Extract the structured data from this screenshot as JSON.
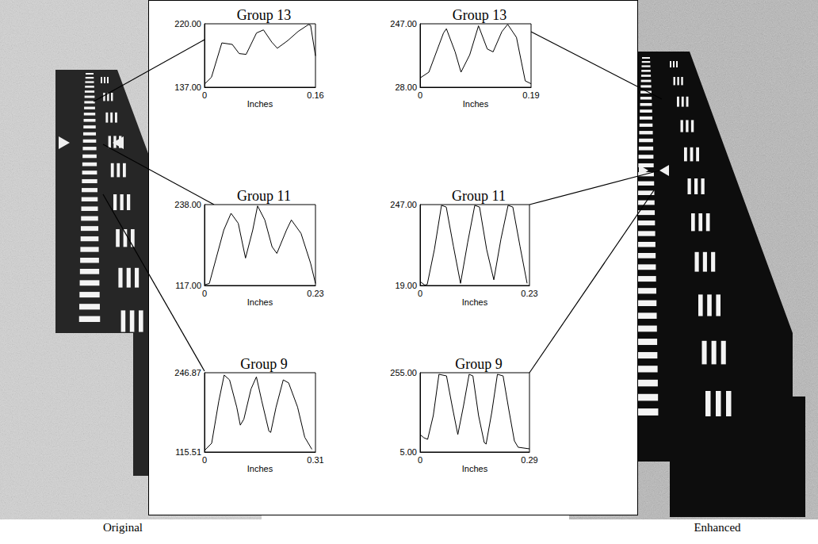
{
  "panels": {
    "left": "Original",
    "right": "Enhanced"
  },
  "chart_data": [
    {
      "type": "line",
      "title": "Group 13",
      "xlabel": "Inches",
      "color": "#000000",
      "grid": false,
      "x": [
        0,
        0.01,
        0.025,
        0.04,
        0.05,
        0.06,
        0.075,
        0.085,
        0.097,
        0.105,
        0.12,
        0.135,
        0.15,
        0.153,
        0.16
      ],
      "values": [
        141,
        150,
        195,
        193,
        181,
        180,
        208,
        212,
        196,
        188,
        198,
        210,
        219,
        218,
        178
      ],
      "xlim": [
        0,
        0.16
      ],
      "xticks": [
        0,
        0.16
      ],
      "ylim": [
        137,
        220
      ],
      "yticks": [
        {
          "value": 137,
          "label": "137.00"
        },
        {
          "value": 220,
          "label": "220.00"
        }
      ]
    },
    {
      "type": "line",
      "title": "Group 13",
      "xlabel": "Inches",
      "color": "#000000",
      "grid": false,
      "x": [
        0,
        0.015,
        0.04,
        0.045,
        0.06,
        0.07,
        0.085,
        0.1,
        0.115,
        0.125,
        0.14,
        0.15,
        0.165,
        0.18,
        0.19
      ],
      "values": [
        60,
        80,
        215,
        230,
        150,
        80,
        140,
        240,
        160,
        150,
        220,
        245,
        200,
        50,
        40
      ],
      "xlim": [
        0,
        0.19
      ],
      "xticks": [
        0,
        0.19
      ],
      "ylim": [
        28,
        247
      ],
      "yticks": [
        {
          "value": 28,
          "label": "28.00"
        },
        {
          "value": 247,
          "label": "247.00"
        }
      ]
    },
    {
      "type": "line",
      "title": "Group 11",
      "xlabel": "Inches",
      "color": "#000000",
      "grid": false,
      "x": [
        0,
        0.01,
        0.04,
        0.055,
        0.07,
        0.085,
        0.1,
        0.11,
        0.125,
        0.14,
        0.15,
        0.17,
        0.18,
        0.2,
        0.22,
        0.23
      ],
      "values": [
        118,
        120,
        200,
        225,
        210,
        158,
        200,
        236,
        215,
        175,
        165,
        200,
        215,
        195,
        150,
        120
      ],
      "xlim": [
        0,
        0.23
      ],
      "xticks": [
        0,
        0.23
      ],
      "ylim": [
        117,
        238
      ],
      "yticks": [
        {
          "value": 117,
          "label": "117.00"
        },
        {
          "value": 238,
          "label": "238.00"
        }
      ]
    },
    {
      "type": "line",
      "title": "Group 11",
      "xlabel": "Inches",
      "color": "#000000",
      "grid": false,
      "x": [
        0,
        0.01,
        0.015,
        0.03,
        0.045,
        0.055,
        0.07,
        0.085,
        0.1,
        0.115,
        0.125,
        0.14,
        0.155,
        0.17,
        0.185,
        0.195,
        0.21,
        0.225
      ],
      "values": [
        30,
        20,
        22,
        120,
        245,
        240,
        130,
        25,
        140,
        245,
        240,
        120,
        35,
        150,
        245,
        240,
        130,
        25
      ],
      "xlim": [
        0,
        0.23
      ],
      "xticks": [
        0,
        0.23
      ],
      "ylim": [
        19,
        247
      ],
      "yticks": [
        {
          "value": 19,
          "label": "19.00"
        },
        {
          "value": 247,
          "label": "247.00"
        }
      ]
    },
    {
      "type": "line",
      "title": "Group 9",
      "xlabel": "Inches",
      "color": "#000000",
      "grid": false,
      "x": [
        0,
        0.02,
        0.04,
        0.055,
        0.07,
        0.09,
        0.1,
        0.11,
        0.13,
        0.145,
        0.16,
        0.18,
        0.185,
        0.2,
        0.22,
        0.235,
        0.26,
        0.28,
        0.3
      ],
      "values": [
        118,
        130,
        200,
        243,
        235,
        190,
        160,
        170,
        220,
        240,
        200,
        150,
        148,
        190,
        235,
        230,
        190,
        140,
        120
      ],
      "xlim": [
        0,
        0.31
      ],
      "xticks": [
        0,
        0.31
      ],
      "ylim": [
        115.51,
        246.87
      ],
      "yticks": [
        {
          "value": 115.51,
          "label": "115.51"
        },
        {
          "value": 246.87,
          "label": "246.87"
        }
      ]
    },
    {
      "type": "line",
      "title": "Group 9",
      "xlabel": "Inches",
      "color": "#000000",
      "grid": false,
      "x": [
        0,
        0.01,
        0.02,
        0.035,
        0.05,
        0.07,
        0.085,
        0.1,
        0.115,
        0.13,
        0.14,
        0.155,
        0.17,
        0.175,
        0.19,
        0.205,
        0.22,
        0.235,
        0.25,
        0.26,
        0.29
      ],
      "values": [
        60,
        50,
        45,
        120,
        250,
        245,
        150,
        60,
        150,
        250,
        245,
        120,
        35,
        30,
        130,
        250,
        245,
        140,
        40,
        20,
        15
      ],
      "xlim": [
        0,
        0.29
      ],
      "xticks": [
        0,
        0.29
      ],
      "ylim": [
        5,
        255
      ],
      "yticks": [
        {
          "value": 5,
          "label": "5.00"
        },
        {
          "value": 255,
          "label": "255.00"
        }
      ]
    }
  ]
}
